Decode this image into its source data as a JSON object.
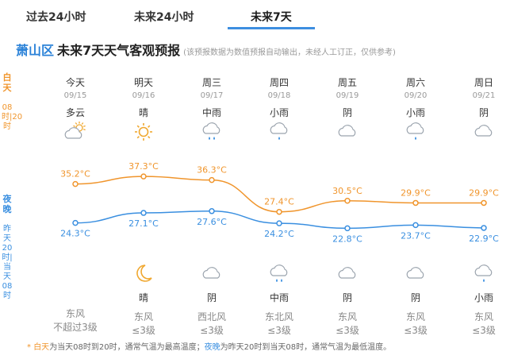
{
  "tabs": [
    {
      "label": "过去24小时"
    },
    {
      "label": "未来24小时"
    },
    {
      "label": "未来7天"
    }
  ],
  "title": {
    "city": "萧山区",
    "main": "未来7天天气客观预报",
    "note": "(该预报数据为数值预报自动输出，未经人工订正，仅供参考)"
  },
  "side": {
    "day_label": "白天",
    "day_range": "08时|20时",
    "night_label": "夜晚",
    "night_range": "昨天20时|当天08时"
  },
  "days": [
    {
      "name": "今天",
      "date": "09/15",
      "day_weather": "多云",
      "day_icon": "partly-cloudy-icon",
      "night_weather": "",
      "night_icon": "",
      "wind_dir": "东风",
      "wind_level": "不超过3级"
    },
    {
      "name": "明天",
      "date": "09/16",
      "day_weather": "晴",
      "day_icon": "sun-icon",
      "night_weather": "晴",
      "night_icon": "moon-icon",
      "wind_dir": "东风",
      "wind_level": "≤3级"
    },
    {
      "name": "周三",
      "date": "09/17",
      "day_weather": "中雨",
      "day_icon": "moderate-rain-icon",
      "night_weather": "阴",
      "night_icon": "cloud-icon",
      "wind_dir": "西北风",
      "wind_level": "≤3级"
    },
    {
      "name": "周四",
      "date": "09/18",
      "day_weather": "小雨",
      "day_icon": "light-rain-icon",
      "night_weather": "中雨",
      "night_icon": "moderate-rain-icon",
      "wind_dir": "东北风",
      "wind_level": "≤3级"
    },
    {
      "name": "周五",
      "date": "09/19",
      "day_weather": "阴",
      "day_icon": "cloud-icon",
      "night_weather": "阴",
      "night_icon": "cloud-icon",
      "wind_dir": "东风",
      "wind_level": "≤3级"
    },
    {
      "name": "周六",
      "date": "09/20",
      "day_weather": "小雨",
      "day_icon": "light-rain-icon",
      "night_weather": "阴",
      "night_icon": "cloud-icon",
      "wind_dir": "东风",
      "wind_level": "≤3级"
    },
    {
      "name": "周日",
      "date": "09/21",
      "day_weather": "阴",
      "day_icon": "cloud-icon",
      "night_weather": "小雨",
      "night_icon": "light-rain-icon",
      "wind_dir": "东风",
      "wind_level": "≤3级"
    }
  ],
  "chart_data": {
    "type": "line",
    "x": [
      "09/15",
      "09/16",
      "09/17",
      "09/18",
      "09/19",
      "09/20",
      "09/21"
    ],
    "series": [
      {
        "values": [
          35.2,
          37.3,
          36.3,
          27.4,
          30.5,
          29.9,
          29.9
        ],
        "labels": [
          "35.2°C",
          "37.3°C",
          "36.3°C",
          "27.4°C",
          "30.5°C",
          "29.9°C",
          "29.9°C"
        ],
        "color": "#f0952c"
      },
      {
        "values": [
          24.3,
          27.1,
          27.6,
          24.2,
          22.8,
          23.7,
          22.9
        ],
        "labels": [
          "24.3°C",
          "27.1°C",
          "27.6°C",
          "24.2°C",
          "22.8°C",
          "23.7°C",
          "22.9°C"
        ],
        "color": "#3a8fe0"
      }
    ],
    "grid": false,
    "legend": "none"
  },
  "footnote": {
    "star": "* ",
    "day_term": "白天",
    "day_text": "为当天08时到20时，通常气温为最高温度；",
    "night_term": "夜晚",
    "night_text": "为昨天20时到当天08时，通常气温为最低温度。"
  }
}
